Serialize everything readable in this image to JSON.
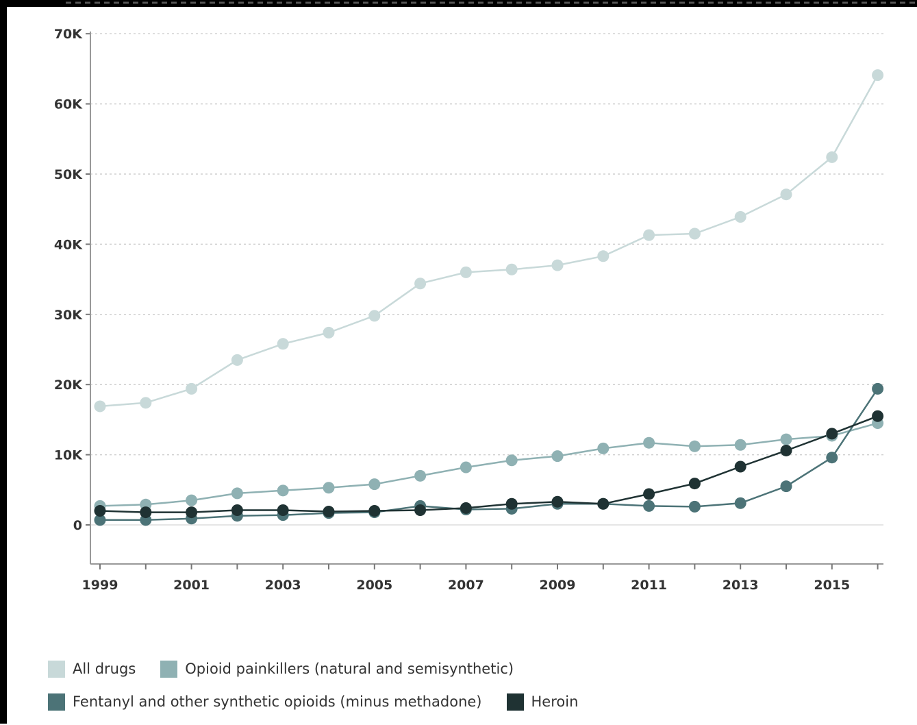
{
  "chart_data": {
    "type": "line",
    "title": "",
    "xlabel": "",
    "ylabel": "",
    "x": [
      1999,
      2000,
      2001,
      2002,
      2003,
      2004,
      2005,
      2006,
      2007,
      2008,
      2009,
      2010,
      2011,
      2012,
      2013,
      2014,
      2015,
      2016
    ],
    "xticks": [
      "1999",
      "2001",
      "2003",
      "2005",
      "2007",
      "2009",
      "2011",
      "2013",
      "2015"
    ],
    "yticks": [
      "70K",
      "60K",
      "50K",
      "40K",
      "30K",
      "20K",
      "10K",
      "0"
    ],
    "ylim": [
      -5500,
      70000
    ],
    "grid": true,
    "legend_position": "bottom",
    "series": [
      {
        "name": "All drugs",
        "color": "#c8d9d9",
        "values": [
          16900,
          17400,
          19400,
          23500,
          25800,
          27400,
          29800,
          34400,
          36000,
          36400,
          37000,
          38300,
          41300,
          41500,
          43900,
          47100,
          52400,
          64100
        ]
      },
      {
        "name": "Opioid painkillers (natural and semisynthetic)",
        "color": "#8fb1b3",
        "values": [
          2700,
          2900,
          3500,
          4500,
          4900,
          5300,
          5800,
          7000,
          8200,
          9200,
          9800,
          10900,
          11700,
          11200,
          11400,
          12200,
          12700,
          14500
        ]
      },
      {
        "name": "Fentanyl and other synthetic opioids (minus methadone)",
        "color": "#4c7377",
        "values": [
          700,
          700,
          900,
          1300,
          1400,
          1700,
          1800,
          2700,
          2200,
          2300,
          3000,
          3000,
          2700,
          2600,
          3100,
          5500,
          9600,
          19400
        ]
      },
      {
        "name": "Heroin",
        "color": "#1f3233",
        "values": [
          2000,
          1800,
          1800,
          2100,
          2100,
          1900,
          2000,
          2100,
          2400,
          3000,
          3300,
          3000,
          4400,
          5900,
          8300,
          10600,
          13000,
          15500
        ]
      }
    ]
  }
}
